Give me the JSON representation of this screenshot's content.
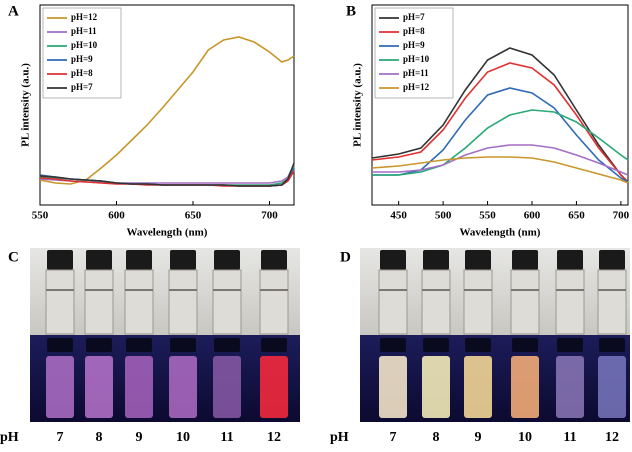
{
  "chart_data": [
    {
      "type": "line",
      "panel_label": "A",
      "x_label": "Wavelength (nm)",
      "y_label": "PL intensity (a.u.)",
      "xlim": [
        550,
        716
      ],
      "xticks": [
        550,
        600,
        650,
        700
      ],
      "ylim": [
        0,
        100
      ],
      "legend": "upper left",
      "x": [
        550,
        560,
        570,
        580,
        590,
        600,
        610,
        620,
        630,
        640,
        650,
        660,
        670,
        680,
        690,
        700,
        708,
        712,
        716
      ],
      "series": [
        {
          "name": "pH=12",
          "color": "#c8962a",
          "values": [
            12.5,
            11,
            10.5,
            12.5,
            18.5,
            25,
            32.5,
            40,
            48.5,
            57.5,
            66.5,
            77.5,
            82.5,
            84,
            81.5,
            76.5,
            71.5,
            72.5,
            74.5
          ]
        },
        {
          "name": "pH=11",
          "color": "#a36fc6",
          "values": [
            13,
            12.5,
            12,
            11.5,
            11.5,
            11,
            11,
            11,
            11,
            11,
            11,
            11,
            11,
            11,
            11,
            11,
            12,
            14,
            20
          ]
        },
        {
          "name": "pH=10",
          "color": "#2aa876",
          "values": [
            14,
            13.5,
            13,
            12.5,
            12,
            11,
            10.5,
            10.5,
            10,
            10,
            10,
            10,
            10,
            10,
            10,
            10,
            11,
            13,
            19
          ]
        },
        {
          "name": "pH=9",
          "color": "#2f6bb5",
          "values": [
            15,
            14,
            13,
            12.5,
            12,
            11,
            10.5,
            10.5,
            10,
            10,
            10,
            10,
            10,
            9.5,
            9.5,
            9.5,
            10,
            12,
            18
          ]
        },
        {
          "name": "pH=8",
          "color": "#e03030",
          "values": [
            13.5,
            13,
            12,
            11.5,
            11,
            10.5,
            10.5,
            10,
            10,
            10,
            10,
            10,
            9.5,
            9.5,
            9.5,
            9.5,
            10,
            12,
            17
          ]
        },
        {
          "name": "pH=7",
          "color": "#333333",
          "values": [
            14.5,
            14,
            13,
            12.5,
            12,
            11,
            10.5,
            10.5,
            10,
            10,
            10,
            10,
            10,
            9.5,
            9.5,
            9.5,
            10,
            13,
            21
          ]
        }
      ]
    },
    {
      "type": "line",
      "panel_label": "B",
      "x_label": "Wavelength (nm)",
      "y_label": "PL intensity (a.u.)",
      "xlim": [
        420,
        708
      ],
      "xticks": [
        450,
        500,
        550,
        600,
        650,
        700
      ],
      "ylim": [
        0,
        100
      ],
      "legend": "upper left",
      "x": [
        420,
        450,
        475,
        500,
        525,
        550,
        575,
        600,
        625,
        650,
        675,
        700,
        708
      ],
      "series": [
        {
          "name": "pH=7",
          "color": "#333333",
          "values": [
            23.5,
            25.5,
            28.5,
            40,
            57.5,
            72.5,
            78.5,
            75,
            65,
            47.5,
            30,
            15,
            11.5
          ]
        },
        {
          "name": "pH=8",
          "color": "#e03030",
          "values": [
            22.5,
            24,
            26.5,
            37.5,
            53.5,
            66.5,
            71,
            68.5,
            60,
            45,
            28.5,
            15,
            11.5
          ]
        },
        {
          "name": "pH=9",
          "color": "#2f6bb5",
          "values": [
            15,
            15,
            17.5,
            27.5,
            42.5,
            55,
            58.5,
            56,
            48.5,
            35,
            22.5,
            13.5,
            11.5
          ]
        },
        {
          "name": "pH=10",
          "color": "#2aa876",
          "values": [
            15,
            15,
            16.5,
            20,
            28.5,
            38.5,
            45,
            47.5,
            46.5,
            41.5,
            33.5,
            25,
            22.5
          ]
        },
        {
          "name": "pH=11",
          "color": "#a36fc6",
          "values": [
            16.5,
            16.5,
            17.5,
            20,
            25,
            28.5,
            30,
            30,
            28.5,
            25,
            21,
            16.5,
            15
          ]
        },
        {
          "name": "pH=12",
          "color": "#c8962a",
          "values": [
            18.5,
            19.5,
            21,
            22.5,
            23.5,
            24,
            24,
            23.5,
            21.5,
            18.5,
            15.5,
            12.5,
            11
          ]
        }
      ]
    }
  ],
  "photo_panels": [
    {
      "label": "C",
      "x_label": "pH",
      "categories": [
        "7",
        "8",
        "9",
        "10",
        "11",
        "12"
      ]
    },
    {
      "label": "D",
      "x_label": "pH",
      "categories": [
        "7",
        "8",
        "9",
        "10",
        "11",
        "12"
      ]
    }
  ]
}
